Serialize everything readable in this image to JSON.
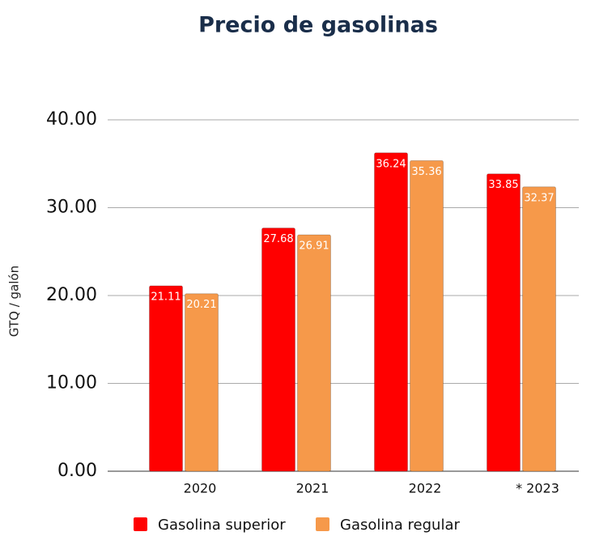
{
  "chart_data": {
    "type": "bar",
    "title": "Precio de gasolinas",
    "y_label": "GTQ / galón",
    "categories": [
      "2020",
      "2021",
      "2022",
      "* 2023"
    ],
    "series": [
      {
        "name": "Gasolina superior",
        "color": "#ff0000",
        "values": [
          21.11,
          27.68,
          36.24,
          33.85
        ]
      },
      {
        "name": "Gasolina regular",
        "color": "#f6994a",
        "values": [
          20.21,
          26.91,
          35.36,
          32.37
        ]
      }
    ],
    "ylim": [
      0,
      40
    ],
    "yticks": [
      {
        "value": 0,
        "label": "0.00"
      },
      {
        "value": 10,
        "label": "10.00"
      },
      {
        "value": 20,
        "label": "20.00"
      },
      {
        "value": 30,
        "label": "30.00"
      },
      {
        "value": 40,
        "label": "40.00"
      }
    ],
    "grid": true,
    "legend": "bottom"
  }
}
